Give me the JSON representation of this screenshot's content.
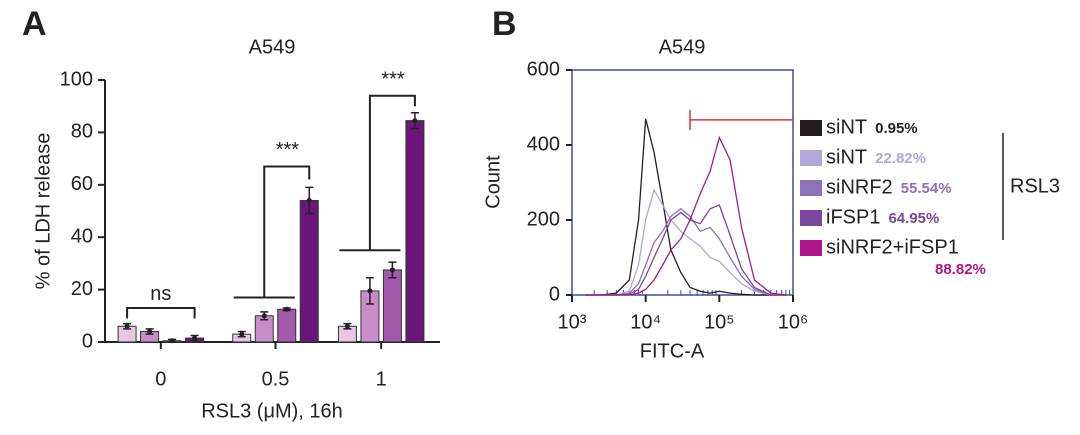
{
  "chart_data": [
    {
      "type": "bar",
      "panel": "A",
      "title": "A549",
      "xlabel": "RSL3 (μM), 16h",
      "ylabel": "% of LDH release",
      "categories": [
        "0",
        "0.5",
        "1"
      ],
      "series": [
        {
          "color": "#e8c6e2",
          "values": [
            6,
            3,
            6
          ],
          "errors": [
            1,
            1,
            1
          ]
        },
        {
          "color": "#c98cc8",
          "values": [
            4,
            10,
            19.5
          ],
          "errors": [
            1,
            1.5,
            5
          ]
        },
        {
          "color": "#a45aab",
          "values": [
            0.5,
            12.5,
            27.5
          ],
          "errors": [
            0.5,
            0.5,
            3
          ]
        },
        {
          "color": "#6b1679",
          "values": [
            1.5,
            54,
            84.5
          ],
          "errors": [
            1,
            5,
            3
          ]
        }
      ],
      "annotations": [
        "ns",
        "***",
        "***"
      ],
      "ylim": [
        0,
        100
      ],
      "yticks": [
        0,
        20,
        40,
        60,
        80,
        100
      ]
    },
    {
      "type": "line",
      "panel": "B",
      "title": "A549",
      "xlabel": "FITC-A",
      "ylabel": "Count",
      "log_x": true,
      "x": [
        1500,
        2500,
        4000,
        6000,
        8000,
        10000,
        13000,
        17000,
        22000,
        30000,
        40000,
        55000,
        75000,
        100000,
        140000,
        200000,
        300000,
        500000,
        800000
      ],
      "series": [
        {
          "name": "siNT",
          "label": "0.95%",
          "color": "#231f20",
          "values": [
            0,
            0,
            5,
            40,
            200,
            470,
            380,
            250,
            120,
            60,
            20,
            10,
            5,
            10,
            5,
            2,
            0,
            0,
            0
          ]
        },
        {
          "name": "siNT",
          "label": "22.82%",
          "color": "#b0a7d6",
          "values": [
            0,
            0,
            0,
            10,
            80,
            200,
            280,
            240,
            200,
            170,
            150,
            130,
            100,
            90,
            60,
            30,
            10,
            0,
            0
          ]
        },
        {
          "name": "siNRF2",
          "label": "55.54%",
          "color": "#8c72b8",
          "values": [
            0,
            0,
            0,
            5,
            30,
            80,
            140,
            170,
            210,
            230,
            210,
            170,
            180,
            150,
            100,
            50,
            15,
            0,
            0
          ]
        },
        {
          "name": "iFSP1",
          "label": "64.95%",
          "color": "#7a479c",
          "values": [
            0,
            0,
            0,
            2,
            15,
            50,
            100,
            150,
            200,
            220,
            200,
            190,
            230,
            240,
            160,
            70,
            20,
            0,
            0
          ]
        },
        {
          "name": "siNRF2+iFSP1",
          "label": "88.82%",
          "color": "#b0168c",
          "values": [
            0,
            0,
            0,
            0,
            5,
            15,
            40,
            80,
            120,
            150,
            200,
            270,
            330,
            420,
            360,
            180,
            40,
            5,
            0
          ]
        }
      ],
      "gate": {
        "x": [
          40000,
          1000000
        ],
        "y": 467,
        "color": "#e0303a"
      },
      "group_label": "RSL3",
      "xlim": [
        1000,
        1000000
      ],
      "xticks": [
        {
          "value": 1000,
          "label": "10³"
        },
        {
          "value": 10000,
          "label": "10⁴"
        },
        {
          "value": 100000,
          "label": "10⁵"
        },
        {
          "value": 1000000,
          "label": "10⁶"
        }
      ],
      "ylim": [
        0,
        600
      ],
      "yticks": [
        0,
        200,
        400,
        600
      ]
    }
  ]
}
